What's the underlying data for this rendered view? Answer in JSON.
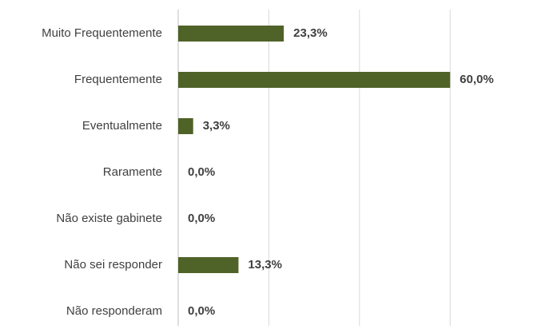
{
  "chart_data": {
    "type": "bar",
    "orientation": "horizontal",
    "categories": [
      "Muito Frequentemente",
      "Frequentemente",
      "Eventualmente",
      "Raramente",
      "Não existe gabinete",
      "Não sei responder",
      "Não responderam"
    ],
    "values": [
      23.3,
      60.0,
      3.3,
      0.0,
      0.0,
      13.3,
      0.0
    ],
    "value_labels": [
      "23,3%",
      "60,0%",
      "3,3%",
      "0,0%",
      "0,0%",
      "13,3%",
      "0,0%"
    ],
    "color": "#4f6228",
    "xlim": [
      0,
      70
    ],
    "xticks": [
      0,
      20,
      40,
      60
    ],
    "grid": true
  }
}
